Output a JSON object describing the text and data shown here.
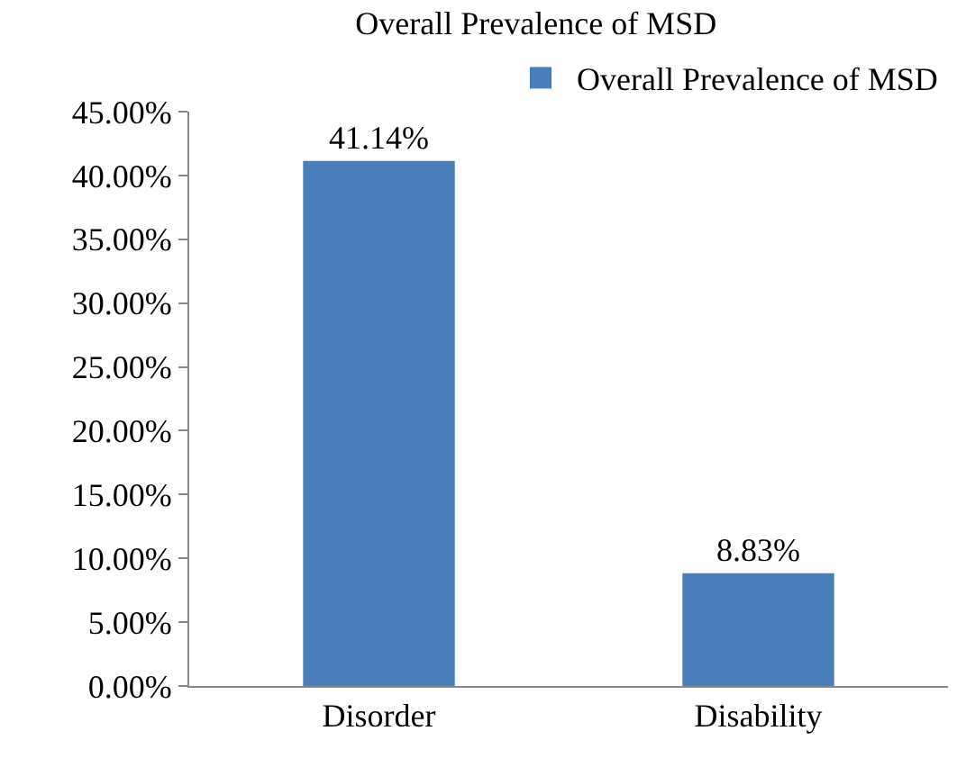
{
  "chart_data": {
    "type": "bar",
    "title": "Overall Prevalence of MSD",
    "categories": [
      "Disorder",
      "Disability"
    ],
    "series": [
      {
        "name": "Overall Prevalence of MSD",
        "color": "#4a7ebb",
        "values": [
          41.14,
          8.83
        ],
        "value_labels": [
          "41.14%",
          "8.83%"
        ]
      }
    ],
    "ylim": [
      0,
      45
    ],
    "yticks": [
      {
        "value": 0,
        "label": "0.00%"
      },
      {
        "value": 5,
        "label": "5.00%"
      },
      {
        "value": 10,
        "label": "10.00%"
      },
      {
        "value": 15,
        "label": "15.00%"
      },
      {
        "value": 20,
        "label": "20.00%"
      },
      {
        "value": 25,
        "label": "25.00%"
      },
      {
        "value": 30,
        "label": "30.00%"
      },
      {
        "value": 35,
        "label": "35.00%"
      },
      {
        "value": 40,
        "label": "40.00%"
      },
      {
        "value": 45,
        "label": "45.00%"
      }
    ],
    "grid": false,
    "legend": "top right"
  }
}
